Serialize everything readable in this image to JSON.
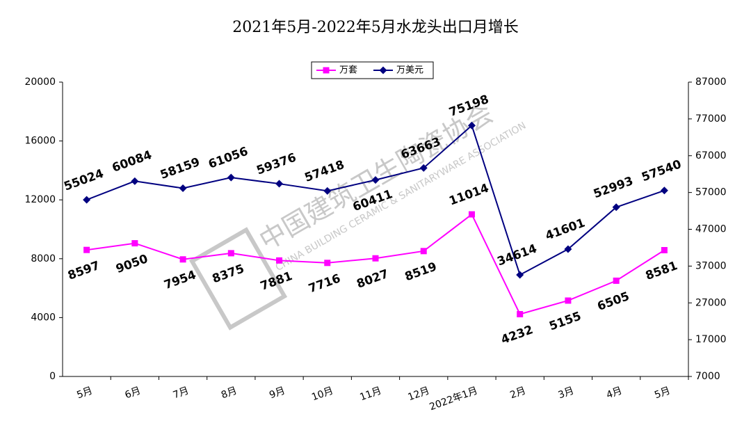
{
  "chart_data": {
    "type": "line",
    "title": "2021年5月-2022年5月水龙头出口月增长",
    "categories": [
      "5月",
      "6月",
      "7月",
      "8月",
      "9月",
      "10月",
      "11月",
      "12月",
      "2022年1月",
      "2月",
      "3月",
      "4月",
      "5月"
    ],
    "series": [
      {
        "name": "万套",
        "color": "#ff00ff",
        "marker": "square",
        "axis": "y",
        "values": [
          8597,
          9050,
          7954,
          8375,
          7881,
          7716,
          8027,
          8519,
          11014,
          4232,
          5155,
          6505,
          8581
        ]
      },
      {
        "name": "万美元",
        "color": "#000080",
        "marker": "diamond",
        "axis": "y2",
        "values": [
          55024,
          60084,
          58159,
          61056,
          59376,
          57418,
          60411,
          63663,
          75198,
          34614,
          41601,
          52993,
          57540
        ]
      }
    ],
    "ylim": [
      0,
      20000
    ],
    "yticks": [
      0,
      4000,
      8000,
      12000,
      16000,
      20000
    ],
    "y2lim": [
      7000,
      87000
    ],
    "y2ticks": [
      7000,
      17000,
      27000,
      37000,
      47000,
      57000,
      67000,
      77000,
      87000
    ],
    "grid": false,
    "legend": "top",
    "watermark": {
      "name": "中国建筑卫生陶瓷协会",
      "english": "CHINA BUILDING CERAMIC & SANITARYWARE ASSOCIATION"
    }
  }
}
